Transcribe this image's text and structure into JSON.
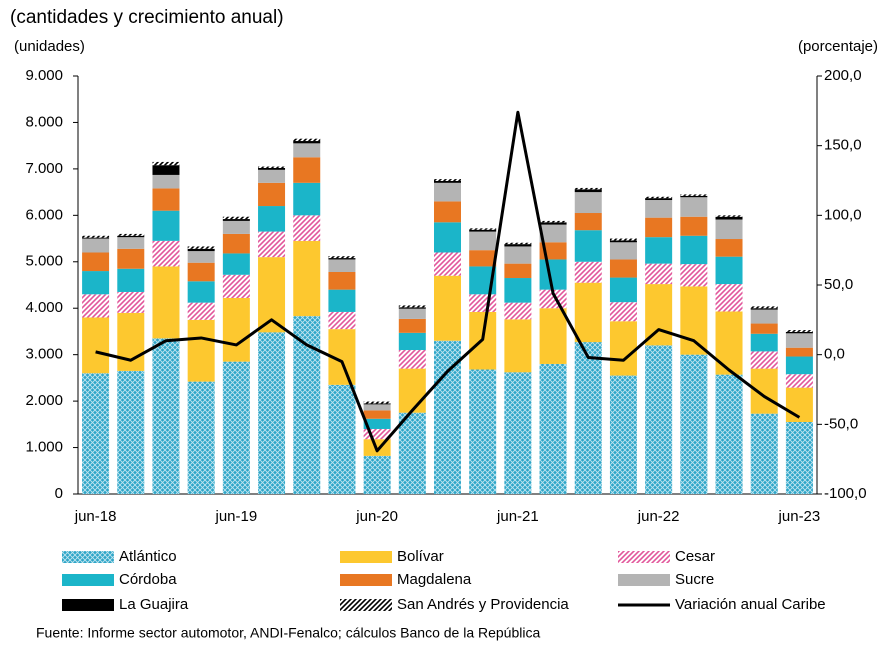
{
  "chart_data": {
    "type": "stacked-bar-line",
    "subtitle": "(cantidades y crecimiento anual)",
    "y_label": "(unidades)",
    "y2_label": "(porcentaje)",
    "source": "Fuente: Informe sector automotor, ANDI-Fenalco; cálculos Banco de la República",
    "categories": [
      "jun-18",
      null,
      null,
      null,
      "jun-19",
      null,
      null,
      null,
      "jun-20",
      null,
      null,
      null,
      "jun-21",
      null,
      null,
      null,
      "jun-22",
      null,
      null,
      null,
      "jun-23"
    ],
    "ylim": [
      0,
      9000
    ],
    "yticks": [
      0,
      {
        "value": 1000,
        "label": "1.000"
      },
      {
        "value": 2000,
        "label": "2.000"
      },
      {
        "value": 3000,
        "label": "3.000"
      },
      {
        "value": 4000,
        "label": "4.000"
      },
      {
        "value": 5000,
        "label": "5.000"
      },
      {
        "value": 6000,
        "label": "6.000"
      },
      {
        "value": 7000,
        "label": "7.000"
      },
      {
        "value": 8000,
        "label": "8.000"
      },
      {
        "value": 9000,
        "label": "9.000"
      }
    ],
    "y2lim": [
      -100,
      200
    ],
    "y2ticks": [
      {
        "value": -100,
        "label": "-100,0"
      },
      {
        "value": -50,
        "label": "-50,0"
      },
      {
        "value": 0,
        "label": "0,0"
      },
      {
        "value": 50,
        "label": "50,0"
      },
      {
        "value": 100,
        "label": "100,0"
      },
      {
        "value": 150,
        "label": "150,0"
      },
      {
        "value": 200,
        "label": "200,0"
      }
    ],
    "series": [
      {
        "name": "Atlántico",
        "color": "#2ea6c8",
        "pattern": "crosshatch",
        "values": [
          2600,
          2650,
          3350,
          2420,
          2850,
          3480,
          3830,
          2350,
          820,
          1750,
          3300,
          2680,
          2620,
          2800,
          3270,
          2550,
          3200,
          3000,
          2570,
          1730,
          1550
        ]
      },
      {
        "name": "Bolívar",
        "color": "#fdc82f",
        "values": [
          1200,
          1250,
          1550,
          1330,
          1370,
          1620,
          1620,
          1200,
          360,
          950,
          1400,
          1240,
          1140,
          1200,
          1280,
          1170,
          1320,
          1470,
          1360,
          970,
          740
        ]
      },
      {
        "name": "Cesar",
        "color": "#e2579b",
        "pattern": "diagonal",
        "values": [
          500,
          450,
          550,
          370,
          500,
          550,
          550,
          370,
          220,
          400,
          500,
          380,
          360,
          400,
          450,
          410,
          440,
          480,
          590,
          370,
          290
        ]
      },
      {
        "name": "Córdoba",
        "color": "#1bb5c9",
        "values": [
          500,
          500,
          650,
          460,
          460,
          550,
          700,
          480,
          220,
          370,
          650,
          600,
          530,
          650,
          680,
          530,
          570,
          610,
          590,
          380,
          380
        ]
      },
      {
        "name": "Magdalena",
        "color": "#e87722",
        "values": [
          400,
          430,
          480,
          400,
          420,
          500,
          550,
          380,
          180,
          300,
          450,
          350,
          310,
          370,
          370,
          390,
          420,
          410,
          380,
          220,
          190
        ]
      },
      {
        "name": "Sucre",
        "color": "#b4b4b4",
        "values": [
          300,
          250,
          290,
          250,
          280,
          280,
          300,
          270,
          130,
          220,
          400,
          400,
          370,
          380,
          450,
          370,
          380,
          420,
          420,
          300,
          310
        ]
      },
      {
        "name": "La Guajira",
        "color": "#000000",
        "values": [
          20,
          30,
          210,
          50,
          40,
          40,
          50,
          30,
          20,
          30,
          40,
          40,
          50,
          50,
          60,
          40,
          40,
          30,
          60,
          30,
          30
        ]
      },
      {
        "name": "San Andrés y Providencia",
        "color": "#000000",
        "pattern": "diagonal",
        "values": [
          40,
          40,
          70,
          50,
          50,
          30,
          50,
          40,
          40,
          40,
          40,
          30,
          30,
          30,
          30,
          40,
          30,
          30,
          30,
          40,
          40
        ]
      },
      {
        "name": "Variación anual Caribe",
        "color": "#000000",
        "type": "line",
        "axis": "y2",
        "values": [
          2,
          -4,
          10,
          12,
          7,
          25,
          7,
          -5,
          -69,
          -40,
          -12,
          11,
          174,
          44,
          -2,
          -4,
          18,
          10,
          -11,
          -30,
          -45
        ]
      }
    ]
  }
}
